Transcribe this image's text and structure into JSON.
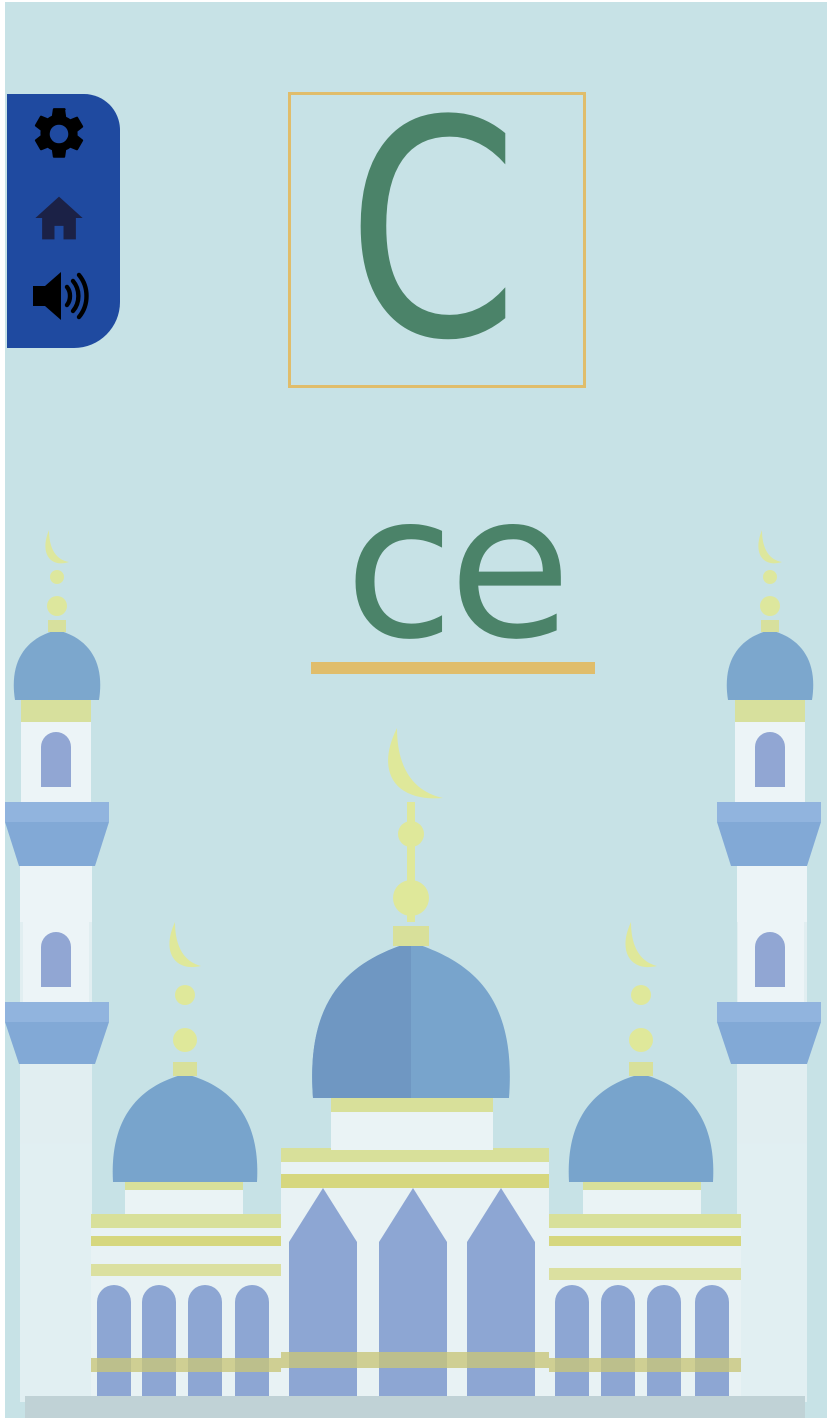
{
  "lesson": {
    "letter": "C",
    "syllable": "ce"
  },
  "side_menu": {
    "items": [
      {
        "id": "settings",
        "icon": "gear-icon"
      },
      {
        "id": "home",
        "icon": "home-icon"
      },
      {
        "id": "sound",
        "icon": "speaker-icon"
      }
    ]
  },
  "colors": {
    "background": "#c7e2e6",
    "panel": "#1f4aa0",
    "letter": "#4b8369",
    "accent": "#e0bd6b"
  }
}
